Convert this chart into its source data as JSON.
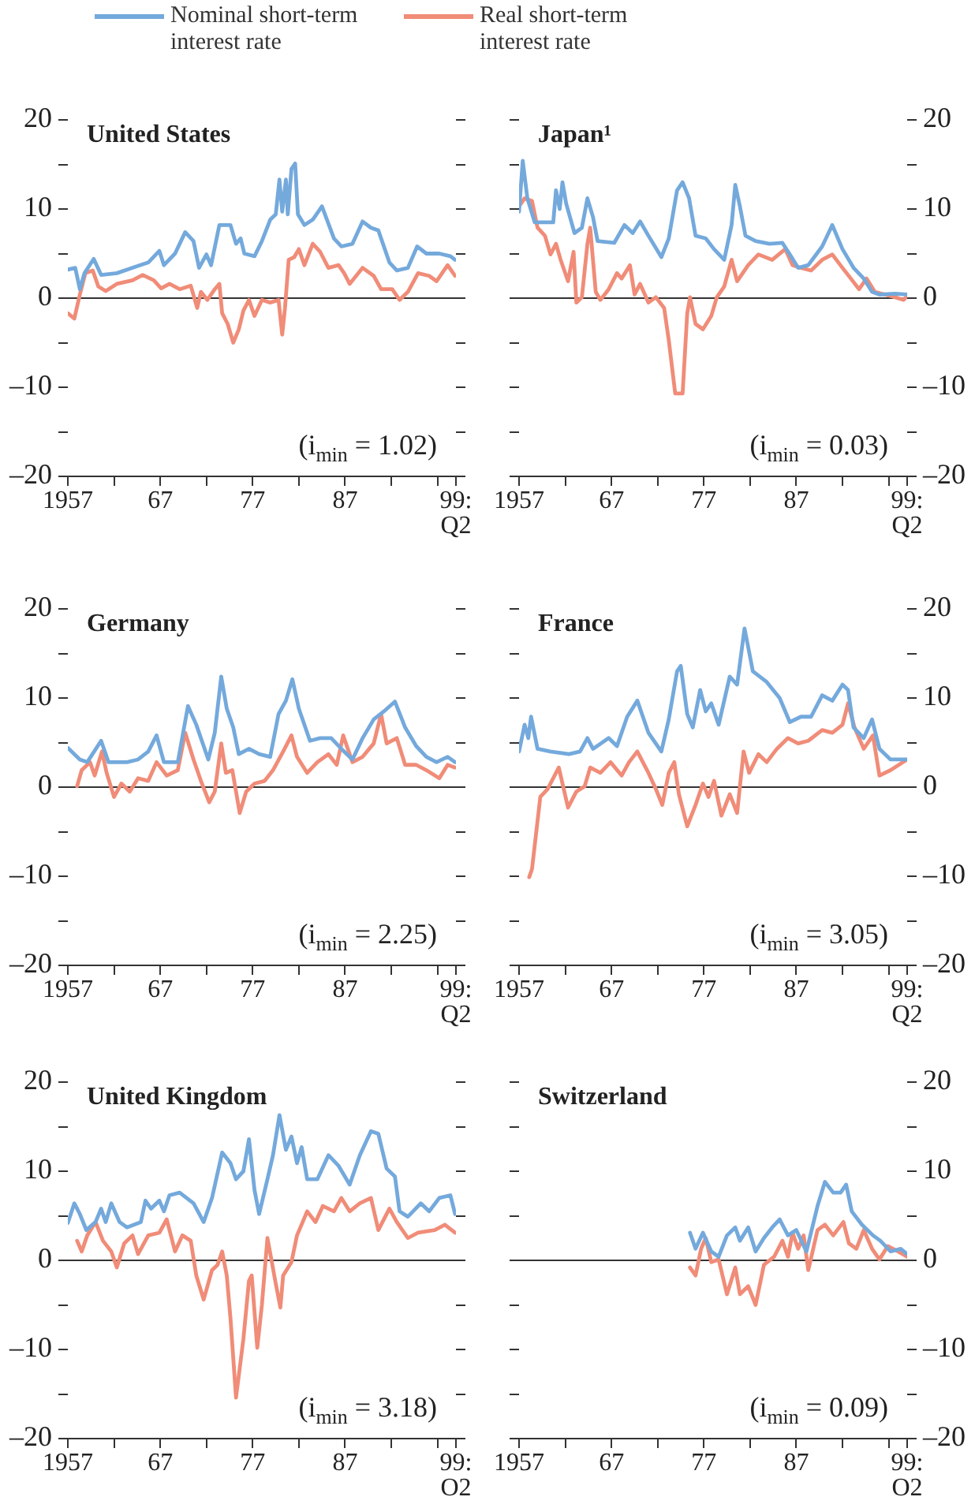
{
  "chart_data": [
    {
      "type": "line",
      "title": "United States",
      "legend": "top",
      "annotations": [
        "(i$_{min}$ = 1.02)"
      ],
      "xlim": [
        1957,
        1999
      ],
      "xticks": [
        {
          "value": 1957,
          "label": "1957"
        },
        {
          "value": 1962,
          "label": null
        },
        {
          "value": 1967,
          "label": "67"
        },
        {
          "value": 1972,
          "label": null
        },
        {
          "value": 1977,
          "label": "77"
        },
        {
          "value": 1982,
          "label": null
        },
        {
          "value": 1987,
          "label": "87"
        },
        {
          "value": 1992,
          "label": null
        },
        {
          "value": 1997,
          "label": null
        },
        {
          "value": 1999,
          "label": "99:\nQ2"
        }
      ],
      "ylim": [
        -20,
        20
      ],
      "yticks": [
        {
          "value": -20,
          "label": "–20"
        },
        {
          "value": -15,
          "label": null
        },
        {
          "value": -10,
          "label": "–10"
        },
        {
          "value": -5,
          "label": null
        },
        0,
        {
          "value": 5,
          "label": null
        },
        10,
        {
          "value": 15,
          "label": null
        },
        20
      ],
      "ref_lines": [
        {
          "axis": "y",
          "value": 0,
          "color": "#333333"
        }
      ],
      "series": [
        {
          "name": "Nominal short-term interest rate",
          "color": "#74a9dc",
          "x": [
            1957,
            1957.8,
            1958.3,
            1958.8,
            1959.8,
            1960.6,
            1962.3,
            1964,
            1965.7,
            1966.9,
            1967.4,
            1968.6,
            1969.7,
            1970.6,
            1971.2,
            1972,
            1972.5,
            1973.4,
            1974.6,
            1975.2,
            1975.7,
            1976.1,
            1977.2,
            1978,
            1978.9,
            1979.5,
            1979.9,
            1980.2,
            1980.6,
            1980.8,
            1981.2,
            1981.6,
            1981.9,
            1982.6,
            1983.5,
            1984.5,
            1985.8,
            1986.6,
            1987.8,
            1988.9,
            1989.8,
            1990.6,
            1991.8,
            1992.6,
            1993.8,
            1994.8,
            1995.8,
            1997.2,
            1998.4,
            1998.9
          ],
          "values": [
            3.2,
            3.4,
            1.0,
            2.8,
            4.4,
            2.6,
            2.8,
            3.4,
            4.0,
            5.3,
            3.7,
            5.0,
            7.4,
            6.4,
            3.4,
            4.9,
            3.7,
            8.2,
            8.2,
            6.1,
            6.7,
            5.0,
            4.7,
            6.4,
            8.8,
            9.4,
            13.3,
            9.7,
            13.3,
            9.4,
            14.5,
            15.1,
            9.4,
            8.2,
            8.8,
            10.3,
            6.7,
            5.8,
            6.1,
            8.6,
            7.9,
            7.6,
            4.0,
            3.1,
            3.4,
            5.8,
            5.0,
            5.0,
            4.7,
            4.3
          ]
        },
        {
          "name": "Real short-term interest rate",
          "color": "#f08c78",
          "x": [
            1957,
            1957.7,
            1958.3,
            1958.9,
            1959.7,
            1960.3,
            1961.1,
            1962.3,
            1964,
            1965.1,
            1966.3,
            1967.1,
            1968,
            1969.1,
            1970.3,
            1971,
            1971.4,
            1972.1,
            1972.9,
            1973.4,
            1973.7,
            1974.3,
            1974.9,
            1975.5,
            1976,
            1976.6,
            1977.2,
            1978,
            1978.9,
            1979.8,
            1980.2,
            1980.5,
            1980.9,
            1981.5,
            1982,
            1982.6,
            1983.5,
            1984.3,
            1985.2,
            1986.3,
            1986.9,
            1987.5,
            1988.9,
            1990.1,
            1990.9,
            1992.1,
            1992.9,
            1993.8,
            1994.9,
            1996.1,
            1996.9,
            1998.1,
            1998.9
          ],
          "values": [
            -1.7,
            -2.3,
            0.4,
            2.8,
            3.1,
            1.3,
            0.8,
            1.6,
            2.0,
            2.6,
            2.0,
            1.1,
            1.6,
            1.0,
            1.4,
            -1.1,
            0.7,
            -0.2,
            1.0,
            1.6,
            -1.7,
            -2.9,
            -5.0,
            -3.5,
            -1.4,
            -0.2,
            -2.0,
            -0.2,
            -0.5,
            -0.2,
            -4.1,
            -1.1,
            4.3,
            4.6,
            5.5,
            3.7,
            6.1,
            5.2,
            3.4,
            3.7,
            2.8,
            1.6,
            3.4,
            2.5,
            1.0,
            1.0,
            -0.2,
            0.7,
            2.8,
            2.5,
            1.9,
            3.7,
            2.5
          ]
        }
      ]
    },
    {
      "type": "line",
      "title": "Japan¹",
      "annotations": [
        "(i$_{min}$ = 0.03)"
      ],
      "xlim": [
        1957,
        1999
      ],
      "xticks": [
        {
          "value": 1957,
          "label": "1957"
        },
        {
          "value": 1962,
          "label": null
        },
        {
          "value": 1967,
          "label": "67"
        },
        {
          "value": 1972,
          "label": null
        },
        {
          "value": 1977,
          "label": "77"
        },
        {
          "value": 1982,
          "label": null
        },
        {
          "value": 1987,
          "label": "87"
        },
        {
          "value": 1992,
          "label": null
        },
        {
          "value": 1997,
          "label": null
        },
        {
          "value": 1999,
          "label": "99:\nQ2"
        }
      ],
      "ylim": [
        -20,
        20
      ],
      "yticks": [
        {
          "value": -20,
          "label": "–20"
        },
        {
          "value": -15,
          "label": null
        },
        {
          "value": -10,
          "label": "–10"
        },
        {
          "value": -5,
          "label": null
        },
        0,
        {
          "value": 5,
          "label": null
        },
        10,
        {
          "value": 15,
          "label": null
        },
        20
      ],
      "ref_lines": [
        {
          "axis": "y",
          "value": 0,
          "color": "#333333"
        }
      ],
      "series": [
        {
          "color": "#74a9dc",
          "x": [
            1957,
            1957.4,
            1957.9,
            1958.7,
            1960.7,
            1961,
            1961.4,
            1961.7,
            1962.1,
            1963,
            1963.8,
            1964.4,
            1965,
            1965.5,
            1967.3,
            1968.4,
            1969.3,
            1970.1,
            1971,
            1972.4,
            1973.2,
            1974.1,
            1974.7,
            1975.4,
            1976.1,
            1977.2,
            1978.1,
            1979.2,
            1980,
            1980.4,
            1980.9,
            1981.5,
            1982.6,
            1984.1,
            1985.5,
            1986.3,
            1987.2,
            1988.3,
            1989.8,
            1990.9,
            1992,
            1993.2,
            1994.3,
            1995.2,
            1996,
            1997.7,
            1999
          ],
          "values": [
            9.7,
            15.4,
            11.2,
            8.5,
            8.5,
            12.1,
            10.0,
            13.0,
            10.6,
            7.3,
            7.9,
            11.2,
            9.1,
            6.4,
            6.2,
            8.2,
            7.3,
            8.6,
            7.0,
            4.6,
            6.7,
            12.1,
            13.0,
            11.2,
            7.0,
            6.7,
            5.5,
            4.3,
            8.2,
            12.7,
            10.3,
            7.0,
            6.4,
            6.1,
            6.2,
            4.9,
            3.4,
            3.7,
            5.8,
            8.2,
            5.5,
            3.4,
            2.2,
            0.7,
            0.4,
            0.5,
            0.4
          ]
        },
        {
          "color": "#f08c78",
          "x": [
            1957,
            1957.6,
            1958.4,
            1959,
            1959.8,
            1960.4,
            1961,
            1961.5,
            1962.3,
            1962.9,
            1963.2,
            1963.8,
            1964.4,
            1964.7,
            1965.3,
            1965.8,
            1966.7,
            1967.6,
            1968.1,
            1969,
            1969.5,
            1970.1,
            1971,
            1971.8,
            1972.7,
            1973.2,
            1973.9,
            1974.7,
            1975.2,
            1975.5,
            1976.1,
            1976.9,
            1977.8,
            1978.4,
            1979.2,
            1980,
            1980.6,
            1981.8,
            1982.9,
            1984.4,
            1985.8,
            1986.6,
            1987.5,
            1988.6,
            1989.8,
            1990.9,
            1992,
            1992.9,
            1993.8,
            1994.6,
            1995.5,
            1996.6,
            1997.7,
            1998.6,
            1999
          ],
          "values": [
            10.3,
            11.2,
            10.9,
            7.9,
            7.0,
            4.9,
            6.1,
            4.3,
            1.9,
            5.2,
            -0.5,
            0.1,
            6.1,
            7.9,
            0.7,
            -0.2,
            1.0,
            2.8,
            2.2,
            3.7,
            0.4,
            1.6,
            -0.5,
            0.1,
            -1.1,
            -4.7,
            -10.7,
            -10.7,
            -1.7,
            0.1,
            -2.9,
            -3.5,
            -2.0,
            0.1,
            1.3,
            4.3,
            1.9,
            3.7,
            4.9,
            4.3,
            5.5,
            3.7,
            3.4,
            3.1,
            4.3,
            4.9,
            3.4,
            2.2,
            1.0,
            2.2,
            0.7,
            0.4,
            0.1,
            -0.2,
            0.2
          ]
        }
      ]
    },
    {
      "type": "line",
      "title": "Germany",
      "annotations": [
        "(i$_{min}$ = 2.25)"
      ],
      "xlim": [
        1957,
        1999
      ],
      "xticks": [
        {
          "value": 1957,
          "label": "1957"
        },
        {
          "value": 1962,
          "label": null
        },
        {
          "value": 1967,
          "label": "67"
        },
        {
          "value": 1972,
          "label": null
        },
        {
          "value": 1977,
          "label": "77"
        },
        {
          "value": 1982,
          "label": null
        },
        {
          "value": 1987,
          "label": "87"
        },
        {
          "value": 1992,
          "label": null
        },
        {
          "value": 1997,
          "label": null
        },
        {
          "value": 1999,
          "label": "99:\nQ2"
        }
      ],
      "ylim": [
        -20,
        20
      ],
      "yticks": [
        {
          "value": -20,
          "label": "–20"
        },
        {
          "value": -15,
          "label": null
        },
        {
          "value": -10,
          "label": "–10"
        },
        {
          "value": -5,
          "label": null
        },
        0,
        {
          "value": 5,
          "label": null
        },
        10,
        {
          "value": 15,
          "label": null
        },
        20
      ],
      "ref_lines": [
        {
          "axis": "y",
          "value": 0,
          "color": "#333333"
        }
      ],
      "series": [
        {
          "color": "#74a9dc",
          "x": [
            1957,
            1958.3,
            1959.1,
            1960.6,
            1961.4,
            1963.4,
            1964.6,
            1965.7,
            1966.6,
            1967.4,
            1968.9,
            1970,
            1970.9,
            1971.4,
            1972.2,
            1972.9,
            1973.6,
            1974.2,
            1974.9,
            1975.5,
            1976.6,
            1977.7,
            1978.9,
            1979.8,
            1980.6,
            1981.3,
            1982,
            1983.2,
            1984.3,
            1985.5,
            1986.6,
            1987.8,
            1988.9,
            1990.1,
            1991.2,
            1992.4,
            1993.5,
            1994.7,
            1995.8,
            1996.9,
            1998.1,
            1998.9
          ],
          "values": [
            4.4,
            3.1,
            2.8,
            5.2,
            2.8,
            2.8,
            3.1,
            4.0,
            5.8,
            2.8,
            2.8,
            9.1,
            7.0,
            5.5,
            3.1,
            6.1,
            12.4,
            8.8,
            6.7,
            3.7,
            4.3,
            3.7,
            3.4,
            8.2,
            9.7,
            12.1,
            8.8,
            5.2,
            5.5,
            5.5,
            4.3,
            3.1,
            5.5,
            7.6,
            8.5,
            9.6,
            6.7,
            4.6,
            3.4,
            2.8,
            3.4,
            2.8
          ]
        },
        {
          "color": "#f08c78",
          "x": [
            1958,
            1958.5,
            1959.4,
            1959.9,
            1960.7,
            1961.2,
            1962,
            1962.8,
            1963.7,
            1964.6,
            1965.7,
            1966.6,
            1967.7,
            1968.9,
            1969.7,
            1970.6,
            1971.4,
            1972.3,
            1972.9,
            1973.6,
            1974.1,
            1974.8,
            1975.2,
            1975.6,
            1976.3,
            1977.2,
            1978.3,
            1979.2,
            1980.3,
            1981.2,
            1981.8,
            1982.9,
            1984,
            1985.2,
            1986.1,
            1986.8,
            1987.8,
            1988.9,
            1990.1,
            1990.9,
            1991.5,
            1992.6,
            1993.5,
            1994.7,
            1995.8,
            1997.2,
            1998.1,
            1998.9
          ],
          "values": [
            0.1,
            1.9,
            2.8,
            1.3,
            4.0,
            1.6,
            -1.1,
            0.4,
            -0.5,
            1.0,
            0.7,
            2.8,
            1.3,
            1.9,
            6.1,
            3.1,
            0.7,
            -1.7,
            -0.5,
            4.9,
            1.6,
            1.9,
            -0.5,
            -2.9,
            -0.5,
            0.4,
            0.7,
            1.9,
            4.0,
            5.8,
            3.4,
            1.6,
            2.8,
            3.7,
            2.5,
            5.8,
            2.8,
            3.4,
            4.9,
            8.2,
            4.9,
            5.5,
            2.5,
            2.5,
            1.9,
            1.0,
            2.5,
            2.2
          ]
        }
      ]
    },
    {
      "type": "line",
      "title": "France",
      "annotations": [
        "(i$_{min}$ = 3.05)"
      ],
      "xlim": [
        1957,
        1999
      ],
      "xticks": [
        {
          "value": 1957,
          "label": "1957"
        },
        {
          "value": 1962,
          "label": null
        },
        {
          "value": 1967,
          "label": "67"
        },
        {
          "value": 1972,
          "label": null
        },
        {
          "value": 1977,
          "label": "77"
        },
        {
          "value": 1982,
          "label": null
        },
        {
          "value": 1987,
          "label": "87"
        },
        {
          "value": 1992,
          "label": null
        },
        {
          "value": 1997,
          "label": null
        },
        {
          "value": 1999,
          "label": "99:\nQ2"
        }
      ],
      "ylim": [
        -20,
        20
      ],
      "yticks": [
        {
          "value": -20,
          "label": "–20"
        },
        {
          "value": -15,
          "label": null
        },
        {
          "value": -10,
          "label": "–10"
        },
        {
          "value": -5,
          "label": null
        },
        0,
        {
          "value": 5,
          "label": null
        },
        10,
        {
          "value": 15,
          "label": null
        },
        20
      ],
      "ref_lines": [
        {
          "axis": "y",
          "value": 0,
          "color": "#333333"
        }
      ],
      "series": [
        {
          "color": "#74a9dc",
          "x": [
            1957,
            1957.6,
            1958,
            1958.3,
            1959,
            1960.4,
            1962.4,
            1963.6,
            1964.4,
            1965,
            1966.7,
            1967.6,
            1968.7,
            1969.8,
            1971,
            1972.4,
            1973.2,
            1974.1,
            1974.5,
            1975.2,
            1975.8,
            1976.6,
            1977.2,
            1977.8,
            1978.6,
            1979.8,
            1980.6,
            1981.4,
            1981.8,
            1982.3,
            1983.8,
            1985.2,
            1986.3,
            1987.5,
            1988.6,
            1989.8,
            1990.9,
            1992,
            1992.6,
            1993.2,
            1994.3,
            1995.2,
            1996,
            1997.2,
            1999
          ],
          "values": [
            4.0,
            7.0,
            5.5,
            7.9,
            4.3,
            4.0,
            3.7,
            4.0,
            5.5,
            4.3,
            5.5,
            4.6,
            7.9,
            9.7,
            6.1,
            4.0,
            7.6,
            13.0,
            13.6,
            8.2,
            6.7,
            10.9,
            8.5,
            9.4,
            7.0,
            12.4,
            11.5,
            17.8,
            15.7,
            13.0,
            11.8,
            10.0,
            7.3,
            7.9,
            7.9,
            10.3,
            9.7,
            11.5,
            10.9,
            6.7,
            5.5,
            7.6,
            4.3,
            3.1,
            3.1
          ]
        },
        {
          "color": "#f08c78",
          "x": [
            1958.1,
            1958.4,
            1959.3,
            1960.1,
            1961.3,
            1962.3,
            1963.2,
            1964.1,
            1964.7,
            1965.8,
            1966.9,
            1968.1,
            1968.9,
            1969.8,
            1971,
            1971.8,
            1972.5,
            1973.2,
            1973.8,
            1974.3,
            1975.2,
            1976.1,
            1976.9,
            1977.5,
            1978.1,
            1978.9,
            1979.8,
            1980.6,
            1981.3,
            1981.9,
            1982.9,
            1983.8,
            1984.9,
            1986.1,
            1987.2,
            1988.3,
            1989.8,
            1990.9,
            1992,
            1992.6,
            1993.3,
            1994.3,
            1995.3,
            1996,
            1997.2,
            1999
          ],
          "values": [
            -10.1,
            -9.2,
            -1.1,
            -0.2,
            2.2,
            -2.3,
            -0.5,
            0.1,
            2.2,
            1.6,
            2.8,
            1.3,
            2.8,
            4.0,
            1.6,
            -0.2,
            -2.0,
            1.6,
            2.8,
            -0.8,
            -4.4,
            -2.0,
            0.4,
            -1.1,
            0.7,
            -3.2,
            -0.8,
            -2.9,
            4.0,
            1.6,
            3.7,
            2.8,
            4.3,
            5.5,
            4.9,
            5.2,
            6.4,
            6.1,
            7.0,
            9.4,
            6.7,
            4.3,
            5.8,
            1.3,
            1.9,
            3.1
          ]
        }
      ]
    },
    {
      "type": "line",
      "title": "United Kingdom",
      "annotations": [
        "(i$_{min}$ = 3.18)"
      ],
      "xlim": [
        1957,
        1999
      ],
      "xticks": [
        {
          "value": 1957,
          "label": "1957"
        },
        {
          "value": 1962,
          "label": null
        },
        {
          "value": 1967,
          "label": "67"
        },
        {
          "value": 1972,
          "label": null
        },
        {
          "value": 1977,
          "label": "77"
        },
        {
          "value": 1982,
          "label": null
        },
        {
          "value": 1987,
          "label": "87"
        },
        {
          "value": 1992,
          "label": null
        },
        {
          "value": 1997,
          "label": null
        },
        {
          "value": 1999,
          "label": "99:\nO2"
        }
      ],
      "ylim": [
        -20,
        20
      ],
      "yticks": [
        {
          "value": -20,
          "label": "–20"
        },
        {
          "value": -15,
          "label": null
        },
        {
          "value": -10,
          "label": "–10"
        },
        {
          "value": -5,
          "label": null
        },
        0,
        {
          "value": 5,
          "label": null
        },
        10,
        {
          "value": 15,
          "label": null
        },
        20
      ],
      "ref_lines": [
        {
          "axis": "y",
          "value": 0,
          "color": "#333333"
        }
      ],
      "series": [
        {
          "color": "#74a9dc",
          "x": [
            1957,
            1957.7,
            1958.3,
            1959,
            1960,
            1960.6,
            1961.1,
            1961.7,
            1962.6,
            1963.4,
            1964.9,
            1965.4,
            1966,
            1966.9,
            1967.4,
            1968,
            1969.1,
            1970.6,
            1971.7,
            1972.6,
            1973.7,
            1974.6,
            1975.2,
            1976,
            1976.6,
            1977.2,
            1977.7,
            1978.6,
            1979.2,
            1979.9,
            1980.6,
            1981.2,
            1981.8,
            1982.3,
            1982.9,
            1984,
            1985.2,
            1986.3,
            1987.5,
            1988.6,
            1989.8,
            1990.6,
            1991.5,
            1992.4,
            1992.9,
            1993.8,
            1995.2,
            1996.1,
            1997.2,
            1998.4,
            1998.9
          ],
          "values": [
            4.2,
            6.4,
            5.2,
            3.4,
            4.3,
            5.8,
            4.3,
            6.4,
            4.3,
            3.7,
            4.3,
            6.7,
            5.8,
            6.7,
            5.5,
            7.3,
            7.6,
            6.4,
            4.3,
            7.0,
            12.1,
            10.9,
            9.1,
            10.0,
            13.6,
            7.9,
            5.2,
            9.1,
            11.8,
            16.3,
            12.4,
            13.9,
            10.9,
            12.7,
            9.1,
            9.1,
            11.8,
            10.6,
            8.5,
            11.8,
            14.5,
            14.2,
            10.3,
            9.4,
            5.5,
            4.9,
            6.4,
            5.5,
            7.0,
            7.3,
            5.2
          ]
        },
        {
          "color": "#f08c78",
          "x": [
            1958,
            1958.5,
            1959.1,
            1960,
            1960.8,
            1961.7,
            1962.3,
            1963.1,
            1964,
            1964.6,
            1965.7,
            1966.9,
            1967.7,
            1968.6,
            1969.4,
            1970.3,
            1970.9,
            1971.7,
            1972.6,
            1973.2,
            1973.7,
            1974.2,
            1974.6,
            1975.2,
            1976,
            1976.6,
            1976.9,
            1977.5,
            1978,
            1978.6,
            1979.5,
            1980,
            1980.3,
            1981.2,
            1981.8,
            1982.9,
            1983.8,
            1984.6,
            1985.8,
            1986.6,
            1987.5,
            1988.6,
            1989.8,
            1990.6,
            1991.8,
            1992.6,
            1993.8,
            1994.9,
            1996.7,
            1997.8,
            1998.9
          ],
          "values": [
            2.2,
            1.0,
            2.8,
            4.3,
            2.2,
            1.0,
            -0.8,
            1.9,
            2.8,
            0.7,
            2.8,
            3.1,
            4.6,
            1.0,
            2.8,
            2.2,
            -1.7,
            -4.4,
            -1.1,
            -0.5,
            1.0,
            -1.7,
            -6.5,
            -15.4,
            -8.8,
            -2.3,
            -1.7,
            -9.8,
            -5.0,
            2.5,
            -2.6,
            -5.3,
            -1.7,
            -0.2,
            2.8,
            5.5,
            4.3,
            6.1,
            5.5,
            7.0,
            5.5,
            6.4,
            7.0,
            3.4,
            5.8,
            4.3,
            2.5,
            3.1,
            3.4,
            4.0,
            3.1
          ]
        }
      ]
    },
    {
      "type": "line",
      "title": "Switzerland",
      "annotations": [
        "(i$_{min}$ = 0.09)"
      ],
      "xlim": [
        1957,
        1999
      ],
      "xticks": [
        {
          "value": 1957,
          "label": "1957"
        },
        {
          "value": 1962,
          "label": null
        },
        {
          "value": 1967,
          "label": "67"
        },
        {
          "value": 1972,
          "label": null
        },
        {
          "value": 1977,
          "label": "77"
        },
        {
          "value": 1982,
          "label": null
        },
        {
          "value": 1987,
          "label": "87"
        },
        {
          "value": 1992,
          "label": null
        },
        {
          "value": 1997,
          "label": null
        },
        {
          "value": 1999,
          "label": "99:\nO2"
        }
      ],
      "ylim": [
        -20,
        20
      ],
      "yticks": [
        {
          "value": -20,
          "label": "–20"
        },
        {
          "value": -15,
          "label": null
        },
        {
          "value": -10,
          "label": "–10"
        },
        {
          "value": -5,
          "label": null
        },
        0,
        {
          "value": 5,
          "label": null
        },
        10,
        {
          "value": 15,
          "label": null
        },
        20
      ],
      "ref_lines": [
        {
          "axis": "y",
          "value": 0,
          "color": "#333333"
        }
      ],
      "series": [
        {
          "color": "#74a9dc",
          "x": [
            1975.5,
            1976.1,
            1976.9,
            1977.8,
            1978.6,
            1979.5,
            1980.4,
            1980.9,
            1981.8,
            1982.6,
            1983.5,
            1984.4,
            1985.2,
            1986.1,
            1987,
            1988.1,
            1989.3,
            1990.1,
            1991,
            1991.8,
            1992.4,
            1993,
            1994.1,
            1995.3,
            1996.1,
            1997.2,
            1998.3,
            1999
          ],
          "values": [
            3.1,
            1.3,
            3.1,
            1.0,
            0.4,
            2.8,
            3.7,
            2.2,
            3.7,
            1.0,
            2.5,
            3.7,
            4.6,
            2.8,
            3.4,
            1.0,
            6.1,
            8.8,
            7.6,
            7.6,
            8.5,
            5.5,
            4.0,
            2.8,
            2.2,
            1.0,
            1.3,
            0.7
          ]
        },
        {
          "color": "#f08c78",
          "x": [
            1975.5,
            1976.1,
            1976.7,
            1977.2,
            1977.8,
            1978.6,
            1979.5,
            1980.4,
            1980.9,
            1981.8,
            1982.6,
            1983.5,
            1984.6,
            1985.5,
            1986.1,
            1986.6,
            1987.2,
            1987.8,
            1988.3,
            1989.3,
            1990.1,
            1991,
            1992.1,
            1992.7,
            1993.5,
            1994.3,
            1995.2,
            1996,
            1996.9,
            1998,
            1999
          ],
          "values": [
            -0.8,
            -1.7,
            1.3,
            2.5,
            -0.2,
            0.1,
            -3.8,
            -0.8,
            -3.8,
            -2.9,
            -5.0,
            -0.5,
            0.4,
            2.2,
            0.4,
            3.1,
            1.3,
            2.8,
            -1.1,
            3.4,
            4.0,
            2.8,
            4.3,
            1.9,
            1.3,
            3.4,
            1.3,
            0.1,
            1.6,
            1.0,
            0.4
          ]
        }
      ]
    }
  ]
}
